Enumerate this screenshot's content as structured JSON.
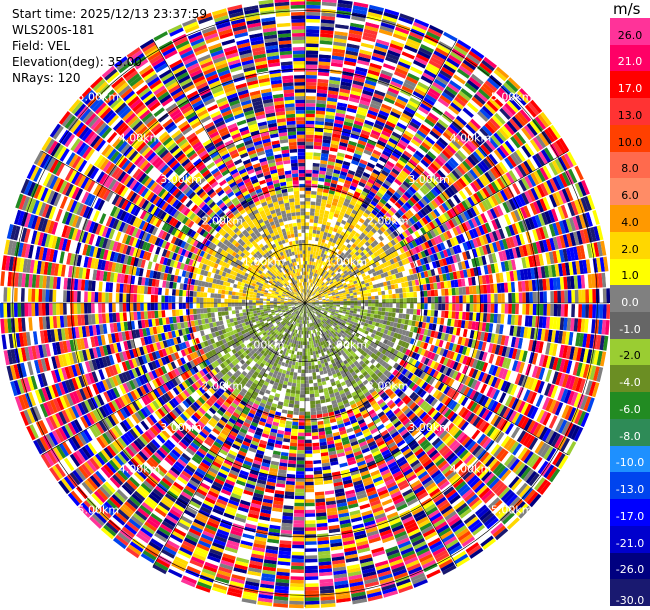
{
  "header": {
    "start_time": "Start time: 2025/12/13 23:37:59",
    "instrument": "WLS200s-181",
    "field": "Field: VEL",
    "elevation": "Elevation(deg): 35.00",
    "nrays": "NRays: 120"
  },
  "chart_data": {
    "type": "heatmap",
    "projection": "polar-ppi",
    "field": "VEL",
    "units": "m/s",
    "elevation_deg": 35.0,
    "n_rays": 120,
    "range_rings_km": [
      1.0,
      2.0,
      3.0,
      4.0,
      5.0
    ],
    "max_range_km": 5.2,
    "ring_labels": [
      "1.00km",
      "2.00km",
      "3.00km",
      "4.00km",
      "5.00km"
    ],
    "grid": true,
    "colorbar": {
      "title": "m/s",
      "placement": "right",
      "ticks": [
        "26.0",
        "21.0",
        "17.0",
        "13.0",
        "10.0",
        "8.0",
        "6.0",
        "4.0",
        "2.0",
        "1.0",
        "0.0",
        "-1.0",
        "-2.0",
        "-4.0",
        "-6.0",
        "-8.0",
        "-10.0",
        "-13.0",
        "-17.0",
        "-21.0",
        "-26.0",
        "-30.0"
      ],
      "colors": [
        "#ff3399",
        "#ff0066",
        "#ff0000",
        "#ff3333",
        "#ff4000",
        "#ff6a4d",
        "#ff8c66",
        "#ff9900",
        "#ffd700",
        "#ffff00",
        "#808080",
        "#666666",
        "#9acd32",
        "#6b8e23",
        "#228b22",
        "#2e8b57",
        "#1e90ff",
        "#0044ee",
        "#0000ff",
        "#0000cd",
        "#000080",
        "#191970"
      ]
    },
    "data_description": {
      "valid_range_km": 1.9,
      "northern_half_mean_ms": 3.0,
      "southern_half_mean_ms": -2.0
    }
  }
}
